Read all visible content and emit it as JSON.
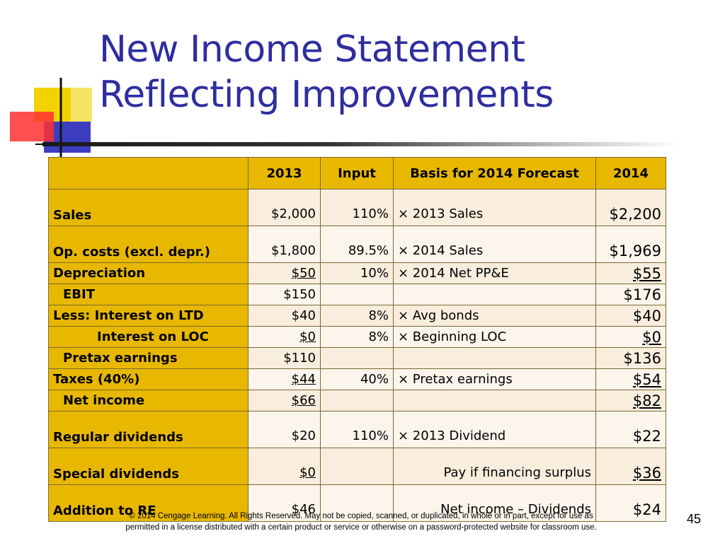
{
  "slide": {
    "title_line1": "New Income Statement",
    "title_line2": "Reflecting Improvements",
    "page_number": "45",
    "footer_line1": "© 2014 Cengage Learning. All Rights Reserved. May not be copied, scanned, or duplicated, in whole or in part, except for use as",
    "footer_line2": "permitted in a license distributed with a certain product or service or otherwise on a password-protected website for classroom use."
  },
  "table": {
    "headers": [
      "",
      "2013",
      "Input",
      "Basis for 2014 Forecast",
      "2014"
    ],
    "rows": [
      {
        "label": "Sales",
        "y2013": "$2,000",
        "input": "110%",
        "basis": "×   2013 Sales",
        "y2014": "$2,200"
      },
      {
        "label": "Op. costs (excl. depr.)",
        "y2013": "$1,800",
        "input": "89.5%",
        "basis": "×   2014 Sales",
        "y2014": "$1,969"
      },
      {
        "label": "Depreciation",
        "y2013": "$50",
        "input": "10%",
        "basis": "×   2014 Net PP&E",
        "y2014": "$55"
      },
      {
        "label": "EBIT",
        "y2013": "$150",
        "input": "",
        "basis": "",
        "y2014": "$176"
      },
      {
        "label": "Less: Interest on LTD",
        "y2013": "$40",
        "input": "8%",
        "basis": "× Avg bonds",
        "y2014": "$40"
      },
      {
        "label": "Interest on LOC",
        "y2013": "$0",
        "input": "8%",
        "basis": "× Beginning LOC",
        "y2014": "$0"
      },
      {
        "label": "Pretax earnings",
        "y2013": "$110",
        "input": "",
        "basis": "",
        "y2014": "$136"
      },
      {
        "label": "Taxes (40%)",
        "y2013": "$44",
        "input": "40%",
        "basis": "× Pretax earnings",
        "y2014": "$54"
      },
      {
        "label": "Net income",
        "y2013": "$66",
        "input": "",
        "basis": "",
        "y2014": "$82"
      },
      {
        "label": "Regular dividends",
        "y2013": "$20",
        "input": "110%",
        "basis": "×  2013 Dividend",
        "y2014": "$22"
      },
      {
        "label": "Special dividends",
        "y2013": "$0",
        "input": "",
        "basis": "Pay if financing surplus",
        "y2014": "$36"
      },
      {
        "label": "Addition to RE",
        "y2013": "$46",
        "input": "",
        "basis": "Net income – Dividends",
        "y2014": "$24"
      }
    ]
  },
  "colors": {
    "title": "#2e2e9f",
    "label_fill": "#e8b800",
    "row_fill_a": "#f9eedd",
    "row_fill_b": "#fbf5ec"
  }
}
